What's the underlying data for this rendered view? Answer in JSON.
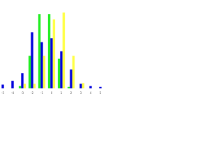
{
  "chart_data": {
    "type": "bar",
    "categories": [
      "-5",
      "-4",
      "-3",
      "-2",
      "-1",
      "0",
      "1",
      "2",
      "3",
      "4",
      "5"
    ],
    "series": [
      {
        "color": "#22ee22",
        "values": [
          0,
          0,
          3,
          43,
          98,
          98,
          39,
          2,
          0,
          0,
          0
        ]
      },
      {
        "color": "#0000dd",
        "values": [
          5,
          10,
          20,
          74,
          61,
          66,
          49,
          25,
          6,
          3,
          2
        ]
      },
      {
        "color": "#ffff44",
        "values": [
          0,
          0,
          6,
          6,
          43,
          91,
          100,
          43,
          7,
          0,
          0
        ]
      }
    ],
    "ylim": [
      0,
      100
    ]
  }
}
